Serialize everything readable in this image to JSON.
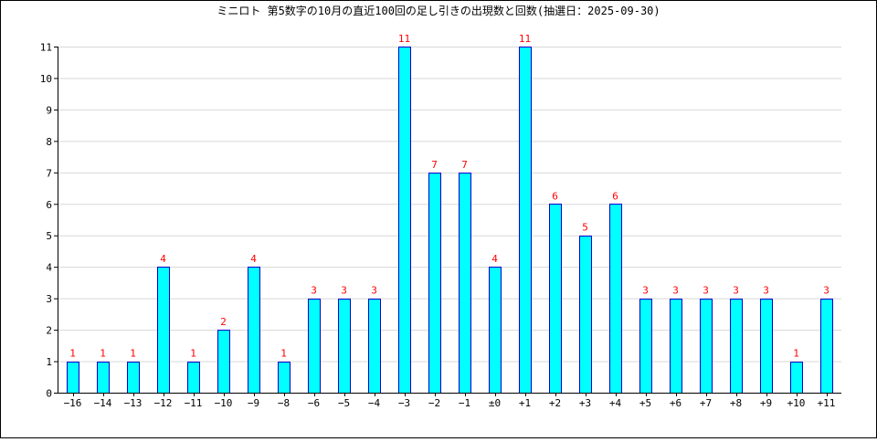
{
  "chart_data": {
    "type": "bar",
    "title": "ミニロト 第5数字の10月の直近100回の足し引きの出現数と回数(抽選日：2025-09-30)",
    "xlabel": "",
    "ylabel": "",
    "categories": [
      "−16",
      "−14",
      "−13",
      "−12",
      "−11",
      "−10",
      "−9",
      "−8",
      "−6",
      "−5",
      "−4",
      "−3",
      "−2",
      "−1",
      "±0",
      "+1",
      "+2",
      "+3",
      "+4",
      "+5",
      "+6",
      "+7",
      "+8",
      "+9",
      "+10",
      "+11"
    ],
    "values": [
      1,
      1,
      1,
      4,
      1,
      2,
      4,
      1,
      3,
      3,
      3,
      11,
      7,
      7,
      4,
      11,
      6,
      5,
      6,
      3,
      3,
      3,
      3,
      3,
      1,
      3
    ],
    "ylim": [
      0,
      11
    ],
    "yticks": [
      "0",
      "1",
      "2",
      "3",
      "4",
      "5",
      "6",
      "7",
      "8",
      "9",
      "10",
      "11"
    ],
    "grid": true,
    "legend": "none",
    "colors": {
      "bar_fill": "#00ffff",
      "bar_stroke": "#0000cc",
      "data_label": "#ff0000",
      "grid": "#d8d8d8",
      "axis": "#000000"
    }
  }
}
